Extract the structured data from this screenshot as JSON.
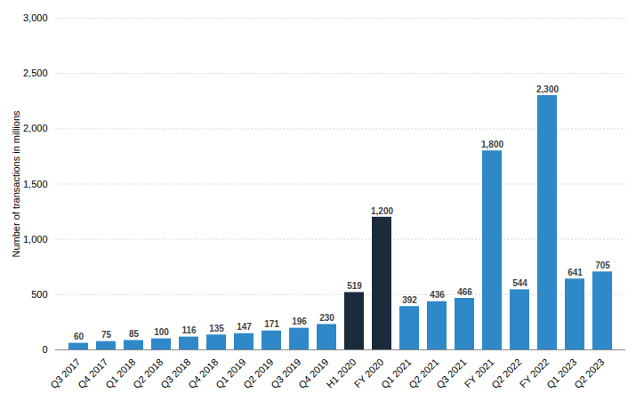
{
  "chart_data": {
    "type": "bar",
    "categories": [
      "Q3 2017",
      "Q4 2017",
      "Q1 2018",
      "Q2 2018",
      "Q3 2018",
      "Q4 2018",
      "Q1 2019",
      "Q2 2019",
      "Q3 2019",
      "Q4 2019",
      "H1 2020",
      "FY 2020",
      "Q1 2021",
      "Q2 2021",
      "Q3 2021",
      "FY 2021",
      "Q2 2022",
      "FY 2022",
      "Q1 2023",
      "Q2 2023"
    ],
    "values": [
      60,
      75,
      85,
      100,
      116,
      135,
      147,
      171,
      196,
      230,
      519,
      1200,
      392,
      436,
      466,
      1800,
      544,
      2300,
      641,
      705
    ],
    "value_labels": [
      "60",
      "75",
      "85",
      "100",
      "116",
      "135",
      "147",
      "171",
      "196",
      "230",
      "519",
      "1,200",
      "392",
      "436",
      "466",
      "1,800",
      "544",
      "2,300",
      "641",
      "705"
    ],
    "colors": [
      "#2f88c8",
      "#2f88c8",
      "#2f88c8",
      "#2f88c8",
      "#2f88c8",
      "#2f88c8",
      "#2f88c8",
      "#2f88c8",
      "#2f88c8",
      "#2f88c8",
      "#1c2b3c",
      "#1c2b3c",
      "#2f88c8",
      "#2f88c8",
      "#2f88c8",
      "#2f88c8",
      "#2f88c8",
      "#2f88c8",
      "#2f88c8",
      "#2f88c8"
    ],
    "ylabel": "Number of transactions in millions",
    "ylim": [
      0,
      3000
    ],
    "yticks": [
      0,
      500,
      {
        "value": 1000,
        "label": "1,000"
      },
      {
        "value": 1500,
        "label": "1,500"
      },
      {
        "value": 2000,
        "label": "2,000"
      },
      {
        "value": 2500,
        "label": "2,500"
      },
      {
        "value": 3000,
        "label": "3,000"
      }
    ],
    "grid": true,
    "data_labels": true
  }
}
